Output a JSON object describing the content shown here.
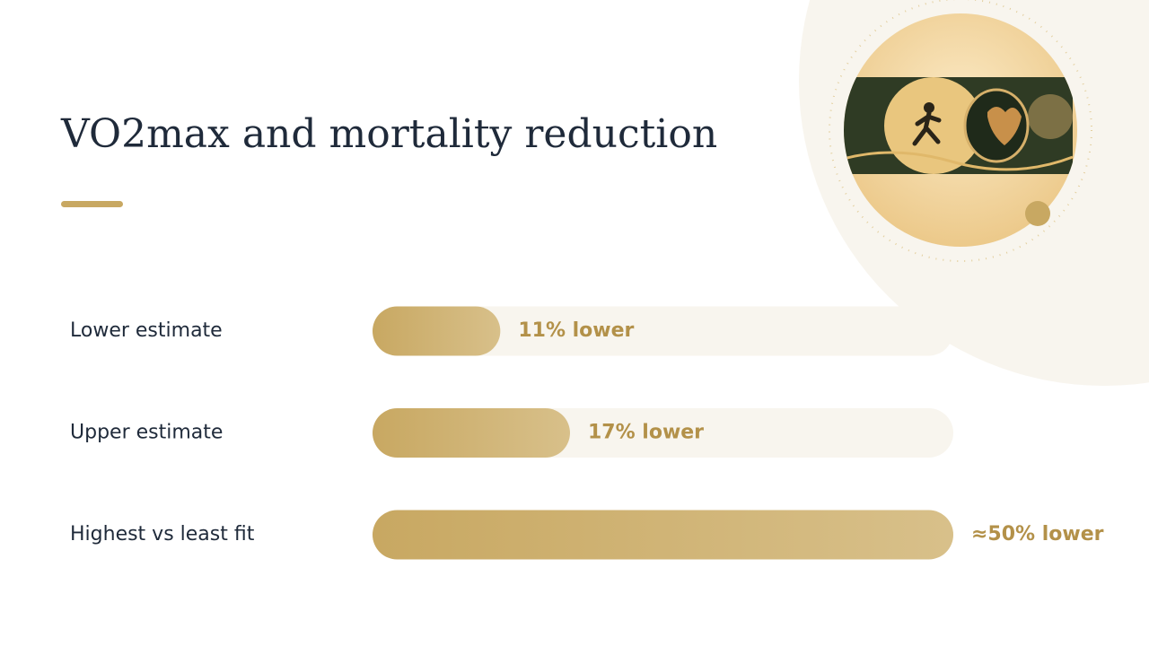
{
  "chart_data": {
    "type": "bar",
    "title": "VO2max and mortality reduction",
    "categories": [
      "Lower estimate",
      "Upper estimate",
      "Highest vs least fit"
    ],
    "values": [
      11,
      17,
      50
    ],
    "value_labels": [
      "11% lower",
      "17% lower",
      "≈50% lower"
    ],
    "color": "#c8a862",
    "xlim": [
      0,
      50
    ]
  }
}
